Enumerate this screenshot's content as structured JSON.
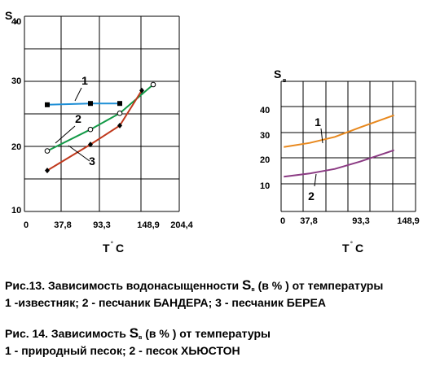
{
  "chart_data": [
    {
      "type": "line",
      "ylabel": "S",
      "ylabel_sub": "в",
      "xlabel": "T",
      "xlabel_sup": "°",
      "xlabel_unit": "C",
      "x_ticks": [
        "0",
        "37,8",
        "93,3",
        "148,9",
        "204,4"
      ],
      "y_ticks": [
        "10",
        "20",
        "30",
        "40"
      ],
      "ylim": [
        10,
        40
      ],
      "grid": true,
      "series": [
        {
          "name": "1",
          "color": "#1f8fd6",
          "marker": "square",
          "x": [
            25,
            74,
            108
          ],
          "y": [
            26.4,
            26.6,
            26.6
          ]
        },
        {
          "name": "2",
          "color": "#139a47",
          "marker": "open-circle",
          "x": [
            25,
            74,
            108,
            156
          ],
          "y": [
            19.3,
            22.6,
            25.1,
            29.5
          ]
        },
        {
          "name": "3",
          "color": "#c0391d",
          "marker": "diamond",
          "x": [
            25,
            74,
            108,
            148
          ],
          "y": [
            16.3,
            20.3,
            23.2,
            28.6
          ]
        }
      ]
    },
    {
      "type": "line",
      "ylabel": "S",
      "ylabel_sub": "в",
      "xlabel": "T",
      "xlabel_sup": "°",
      "xlabel_unit": "C",
      "x_ticks": [
        "0",
        "37,8",
        "93,3",
        "148,9"
      ],
      "y_ticks": [
        "10",
        "20",
        "30",
        "40"
      ],
      "ylim": [
        0,
        48
      ],
      "grid": true,
      "series": [
        {
          "name": "1",
          "color": "#e8881d",
          "x": [
            3,
            32,
            60,
            88,
            126
          ],
          "y": [
            23.8,
            25.3,
            27.5,
            31,
            35.5
          ]
        },
        {
          "name": "2",
          "color": "#8b3a83",
          "x": [
            3,
            32,
            60,
            88,
            126
          ],
          "y": [
            12.8,
            14,
            15.7,
            18.4,
            22.6
          ]
        }
      ]
    }
  ],
  "captions": {
    "fig13_prefix": "Рис.13. Зависимость водонасыщенности ",
    "fig13_symbol": "S",
    "fig13_sub": "в",
    "fig13_suffix": " (в % ) от температуры",
    "fig13_legend": "1 -известняк; 2 - песчаник БАНДЕРА; 3 - песчаник БЕРЕА",
    "fig14_prefix": "Рис. 14. Зависимость ",
    "fig14_symbol": "S",
    "fig14_sub": "в",
    "fig14_suffix": " (в % ) от температуры",
    "fig14_legend": "1 - природный песок; 2 - песок ХЬЮСТОН"
  }
}
